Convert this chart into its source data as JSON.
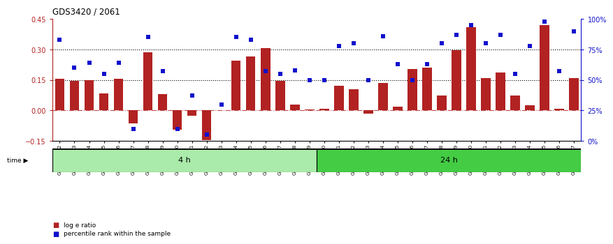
{
  "title": "GDS3420 / 2061",
  "samples": [
    "GSM182402",
    "GSM182403",
    "GSM182404",
    "GSM182405",
    "GSM182406",
    "GSM182407",
    "GSM182408",
    "GSM182409",
    "GSM182410",
    "GSM182411",
    "GSM182412",
    "GSM182413",
    "GSM182414",
    "GSM182415",
    "GSM182416",
    "GSM182417",
    "GSM182418",
    "GSM182419",
    "GSM182420",
    "GSM182421",
    "GSM182422",
    "GSM182423",
    "GSM182424",
    "GSM182425",
    "GSM182426",
    "GSM182427",
    "GSM182428",
    "GSM182429",
    "GSM182430",
    "GSM182431",
    "GSM182432",
    "GSM182433",
    "GSM182434",
    "GSM182435",
    "GSM182436",
    "GSM182437"
  ],
  "log_ratio": [
    0.155,
    0.145,
    0.15,
    0.085,
    0.155,
    -0.065,
    0.285,
    0.08,
    -0.095,
    -0.025,
    -0.145,
    0.0,
    0.245,
    0.265,
    0.305,
    0.145,
    0.03,
    0.005,
    0.01,
    0.12,
    0.105,
    -0.015,
    0.135,
    0.02,
    0.205,
    0.21,
    0.075,
    0.295,
    0.41,
    0.16,
    0.185,
    0.075,
    0.025,
    0.42,
    0.01,
    0.16
  ],
  "percentile": [
    83,
    60,
    64,
    55,
    64,
    10,
    85,
    57,
    10,
    37,
    5,
    30,
    85,
    83,
    57,
    55,
    58,
    50,
    50,
    78,
    80,
    50,
    86,
    63,
    50,
    63,
    80,
    87,
    95,
    80,
    87,
    55,
    78,
    98,
    57,
    90
  ],
  "group_4h_count": 18,
  "group_24h_count": 18,
  "bar_color": "#B22222",
  "dot_color": "#1010CC",
  "ylim_left": [
    -0.15,
    0.45
  ],
  "ylim_right": [
    0,
    100
  ],
  "left_ticks": [
    -0.15,
    0.0,
    0.15,
    0.3,
    0.45
  ],
  "right_ticks": [
    0,
    25,
    50,
    75,
    100
  ],
  "hlines": [
    0.15,
    0.3
  ],
  "light_green": "#AAEAAA",
  "dark_green": "#44CC44",
  "background_color": "#ffffff"
}
